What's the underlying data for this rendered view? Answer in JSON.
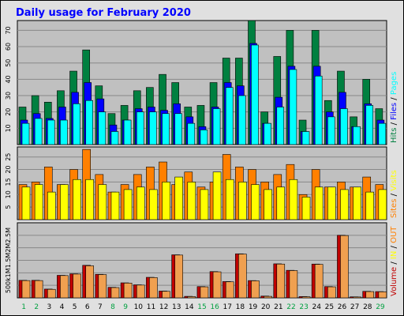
{
  "title": "Daily usage for February 2020",
  "colors": {
    "background": "#E0E0E0",
    "panel": "#C0C0C0",
    "title": "#0000FF",
    "hits": "#008040",
    "files": "#0000FF",
    "pages": "#00FFFF",
    "visits": "#FFFF00",
    "sites": "#FF8000",
    "kbytes_in": "#C00000",
    "kbytes_out": "#F0A050",
    "weekday": "#000000",
    "weekend": "#00A040"
  },
  "chart_data": {
    "type": "bar",
    "days": [
      "1",
      "2",
      "3",
      "4",
      "5",
      "6",
      "7",
      "8",
      "9",
      "10",
      "11",
      "12",
      "13",
      "14",
      "15",
      "16",
      "17",
      "18",
      "19",
      "20",
      "21",
      "22",
      "23",
      "24",
      "25",
      "26",
      "27",
      "28",
      "29"
    ],
    "weekend_days": [
      "1",
      "2",
      "8",
      "9",
      "15",
      "16",
      "22",
      "23",
      "29"
    ],
    "panels": [
      {
        "id": "pages_files_hits",
        "ylim": [
          0,
          76
        ],
        "yticks": [
          10,
          20,
          30,
          40,
          50,
          60,
          70
        ],
        "legend": [
          {
            "text": "Hits",
            "color_key": "hits"
          },
          {
            "text": " / ",
            "color_key": "weekday"
          },
          {
            "text": "Files",
            "color_key": "files"
          },
          {
            "text": " / ",
            "color_key": "weekday"
          },
          {
            "text": "Pages",
            "color_key": "pages"
          }
        ],
        "series": [
          {
            "name": "Hits",
            "color_key": "hits",
            "values": [
              23,
              30,
              26,
              33,
              45,
              58,
              36,
              19,
              24,
              33,
              35,
              43,
              38,
              23,
              24,
              38,
              53,
              53,
              76,
              20,
              54,
              70,
              15,
              70,
              27,
              45,
              17,
              40,
              22
            ]
          },
          {
            "name": "Files",
            "color_key": "files",
            "values": [
              15,
              19,
              16,
              23,
              32,
              38,
              28,
              12,
              15,
              22,
              23,
              21,
              25,
              17,
              11,
              23,
              38,
              36,
              62,
              13,
              29,
              48,
              8,
              48,
              20,
              32,
              11,
              25,
              15
            ]
          },
          {
            "name": "Pages",
            "color_key": "pages",
            "values": [
              13,
              16,
              15,
              15,
              25,
              27,
              20,
              8,
              15,
              20,
              20,
              19,
              19,
              13,
              9,
              22,
              35,
              30,
              61,
              13,
              23,
              46,
              8,
              42,
              17,
              22,
              11,
              24,
              13
            ]
          }
        ]
      },
      {
        "id": "visits_sites",
        "ylim": [
          0,
          29
        ],
        "yticks": [
          5,
          10,
          15,
          20,
          25
        ],
        "legend": [
          {
            "text": "Sites",
            "color_key": "sites"
          },
          {
            "text": " / ",
            "color_key": "weekday"
          },
          {
            "text": "Visits",
            "color_key": "visits"
          }
        ],
        "series": [
          {
            "name": "Sites",
            "color_key": "sites",
            "values": [
              14,
              15,
              21,
              14,
              20,
              28,
              18,
              11,
              14,
              18,
              21,
              23,
              14,
              19,
              13,
              15,
              26,
              21,
              20,
              15,
              18,
              22,
              10,
              20,
              13,
              15,
              13,
              17,
              14
            ]
          },
          {
            "name": "Visits",
            "color_key": "visits",
            "values": [
              13,
              14,
              11,
              14,
              16,
              16,
              14,
              11,
              12,
              13,
              12,
              15,
              17,
              15,
              12,
              19,
              16,
              15,
              14,
              12,
              13,
              16,
              9,
              13,
              13,
              12,
              13,
              11,
              12
            ]
          }
        ]
      },
      {
        "id": "kbytes",
        "ylim": [
          0,
          3000
        ],
        "yticks": [
          500,
          1000,
          1500,
          2000,
          2500
        ],
        "tick_labels": [
          "500k",
          "1M",
          "1.5M",
          "2M",
          "2.5M"
        ],
        "legend": [
          {
            "text": "Volume",
            "color_key": "kbytes_in"
          },
          {
            "text": " / ",
            "color_key": "weekday"
          },
          {
            "text": "IN",
            "color_key": "visits"
          },
          {
            "text": " / ",
            "color_key": "weekday"
          },
          {
            "text": "OUT",
            "color_key": "sites"
          }
        ],
        "series": [
          {
            "name": "Volume",
            "color_key": "kbytes_in",
            "values": [
              700,
              700,
              350,
              900,
              960,
              1300,
              940,
              420,
              600,
              520,
              820,
              270,
              1720,
              60,
              450,
              1050,
              650,
              1760,
              690,
              70,
              1360,
              1100,
              50,
              1350,
              450,
              2500,
              40,
              260,
              250
            ]
          },
          {
            "name": "KBytes out",
            "color_key": "kbytes_out",
            "values": [
              690,
              690,
              340,
              890,
              950,
              1280,
              930,
              410,
              590,
              510,
              810,
              260,
              1710,
              50,
              440,
              1040,
              640,
              1750,
              680,
              60,
              1350,
              1090,
              45,
              1340,
              440,
              2490,
              35,
              250,
              240
            ]
          }
        ]
      }
    ]
  }
}
